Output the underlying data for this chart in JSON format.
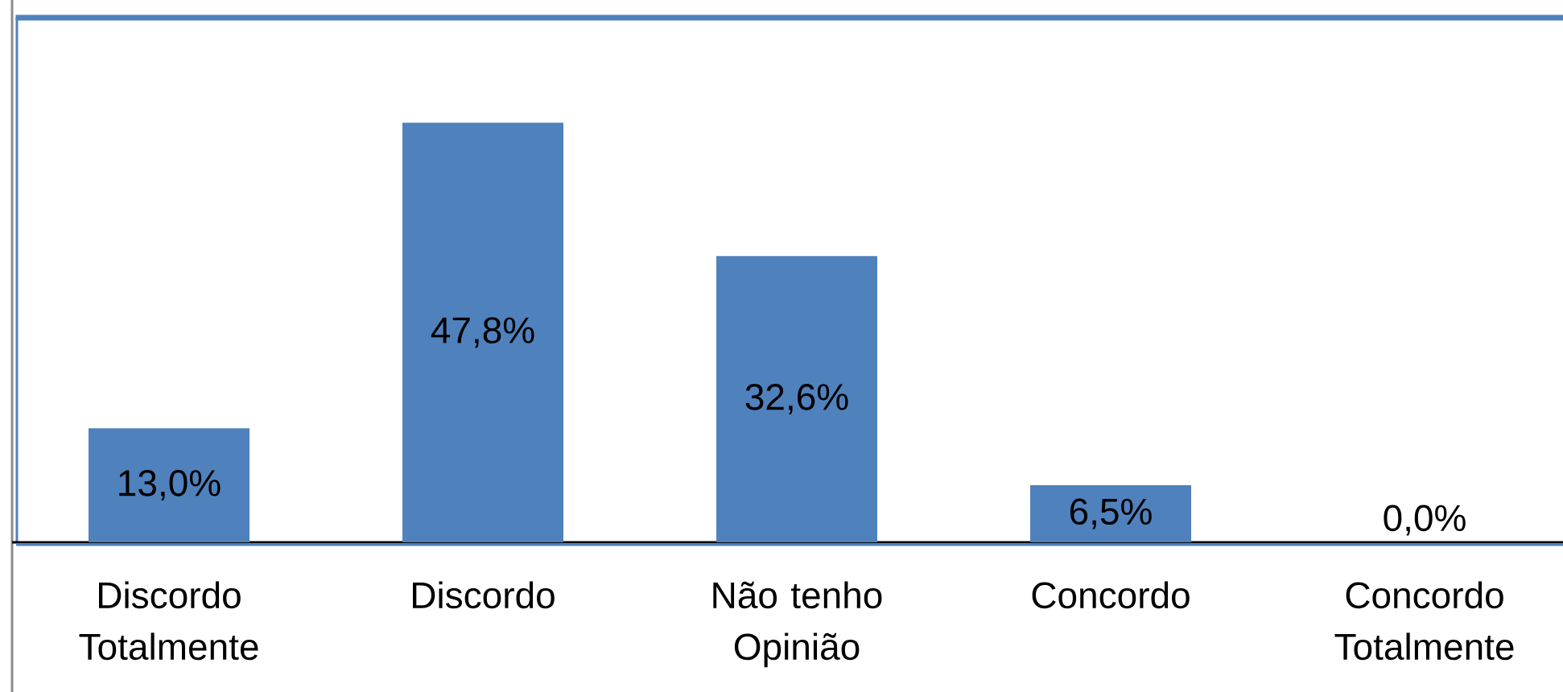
{
  "chart_data": {
    "type": "bar",
    "categories": [
      "Discordo Totalmente",
      "Discordo",
      "Não tenho Opinião",
      "Concordo",
      "Concordo Totalmente"
    ],
    "values": [
      13.0,
      47.8,
      32.6,
      6.5,
      0.0
    ],
    "value_labels": [
      "13,0%",
      "47,8%",
      "32,6%",
      "6,5%",
      "0,0%"
    ],
    "color": "#4f81bd",
    "tick_labels": "x"
  }
}
